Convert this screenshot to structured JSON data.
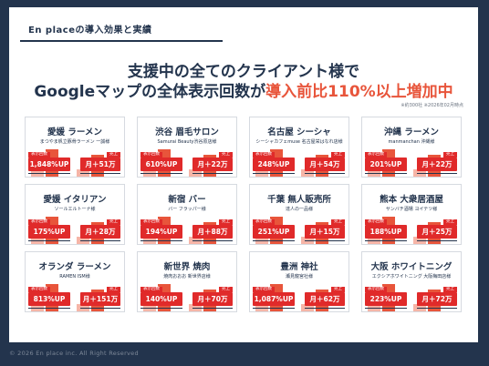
{
  "header": {
    "label": "En placeの導入効果と実績"
  },
  "headline": {
    "line1": "支援中の全てのクライアント様で",
    "line2_prefix": "Googleマップの全体表示回数が",
    "line2_accent": "導入前比110%以上増加中",
    "note": "※約300社 ※2026年02月時点"
  },
  "colors": {
    "navy": "#23344d",
    "accent": "#e8553b",
    "badge_red": "#e02a2a",
    "bar_light": "#f6b5a7"
  },
  "labels": {
    "views": "表示回数",
    "sales": "売上"
  },
  "cards": [
    {
      "title": "愛媛 ラーメン",
      "sub": "まつやま帆立豚骨ラーメン 一誠様",
      "views": "1,848%UP",
      "sales": "月＋51万"
    },
    {
      "title": "渋谷 眉毛サロン",
      "sub": "Samurai Beauty渋谷原店様",
      "views": "610%UP",
      "sales": "月＋22万"
    },
    {
      "title": "名古屋 シーシャ",
      "sub": "シーシャカフェmuse 名古屋栄はなれ店様",
      "views": "248%UP",
      "sales": "月＋54万"
    },
    {
      "title": "沖縄 ラーメン",
      "sub": "manmanchan 沖縄様",
      "views": "201%UP",
      "sales": "月＋22万"
    },
    {
      "title": "愛媛 イタリアン",
      "sub": "ソールエルトーナ様",
      "views": "175%UP",
      "sales": "月＋28万"
    },
    {
      "title": "新宿 バー",
      "sub": "バー フラッパー様",
      "views": "194%UP",
      "sales": "月＋88万"
    },
    {
      "title": "千葉 無人販売所",
      "sub": "達人の一品様",
      "views": "251%UP",
      "sales": "月＋15万"
    },
    {
      "title": "熊本 大衆居酒屋",
      "sub": "サンバチ酒場 ヨイテツ様",
      "views": "188%UP",
      "sales": "月＋25万"
    },
    {
      "title": "オランダ ラーメン",
      "sub": "RAMEN ISM様",
      "views": "813%UP",
      "sales": "月＋151万"
    },
    {
      "title": "新世界 焼肉",
      "sub": "焼肉おおお 新世界店様",
      "views": "140%UP",
      "sales": "月＋70万"
    },
    {
      "title": "豊洲 神社",
      "sub": "瀬見龍宮社様",
      "views": "1,087%UP",
      "sales": "月＋62万"
    },
    {
      "title": "大阪 ホワイトニング",
      "sub": "エクシアホワイトニング 大阪梅田店様",
      "views": "223%UP",
      "sales": "月＋72万"
    }
  ],
  "footer": {
    "copyright": "© 2026 En place inc. All Right Reserved"
  }
}
